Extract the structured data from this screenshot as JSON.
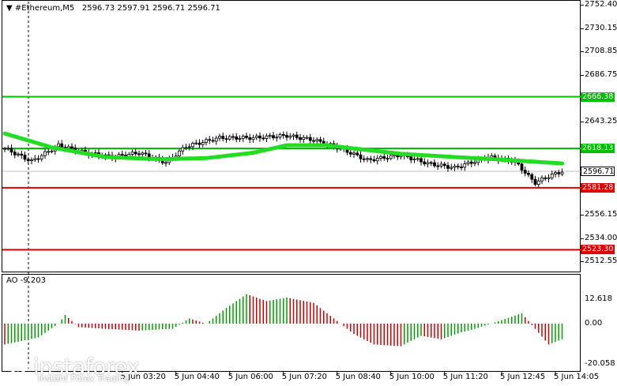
{
  "header": {
    "arrow": "▼",
    "symbol": "#Ethereum,M5",
    "open": "2596.73",
    "high": "2597.91",
    "low": "2596.71",
    "close": "2596.71"
  },
  "price_axis": [
    {
      "value": 2752.4,
      "label": "2752.40"
    },
    {
      "value": 2730.15,
      "label": "2730.15"
    },
    {
      "value": 2708.85,
      "label": "2708.85"
    },
    {
      "value": 2686.75,
      "label": "2686.75"
    },
    {
      "value": 2643.25,
      "label": "2643.25"
    },
    {
      "value": 2556.15,
      "label": "2556.15"
    },
    {
      "value": 2534.0,
      "label": "2534.00"
    },
    {
      "value": 2512.55,
      "label": "2512.55"
    }
  ],
  "levels": [
    {
      "name": "level-2666",
      "value": 2666.38,
      "label": "2666.38",
      "color": "#00c000",
      "text_color": "#ffffff"
    },
    {
      "name": "level-2618",
      "value": 2618.13,
      "label": "2618.13",
      "color": "#00c000",
      "text_color": "#ffffff"
    },
    {
      "name": "level-2581",
      "value": 2581.28,
      "label": "2581.28",
      "color": "#e00000",
      "text_color": "#ffffff"
    },
    {
      "name": "level-2523",
      "value": 2523.3,
      "label": "2523.30",
      "color": "#e00000",
      "text_color": "#ffffff"
    }
  ],
  "current_price": {
    "value": 2596.71,
    "label": "2596.71"
  },
  "ao": {
    "title": "AO -9.203",
    "max_label": "12.618",
    "zero_label": "0.00",
    "min_label": "-20.058"
  },
  "time_axis": [
    {
      "label": "5 Jun 03:20",
      "bar": 35
    },
    {
      "label": "5 Jun 04:40",
      "bar": 51
    },
    {
      "label": "5 Jun 06:00",
      "bar": 67
    },
    {
      "label": "5 Jun 07:20",
      "bar": 83
    },
    {
      "label": "5 Jun 08:40",
      "bar": 99
    },
    {
      "label": "5 Jun 10:00",
      "bar": 115
    },
    {
      "label": "5 Jun 11:20",
      "bar": 131
    },
    {
      "label": "5 Jun 12:45",
      "bar": 148
    },
    {
      "label": "5 Jun 14:05",
      "bar": 164
    }
  ],
  "watermark": {
    "brand": "instaforex",
    "tagline": "Instant Forex Trading"
  },
  "colors": {
    "ma": "#22dd22",
    "ao_up": "#00a000",
    "ao_down": "#d00000",
    "candle": "#000000"
  }
}
